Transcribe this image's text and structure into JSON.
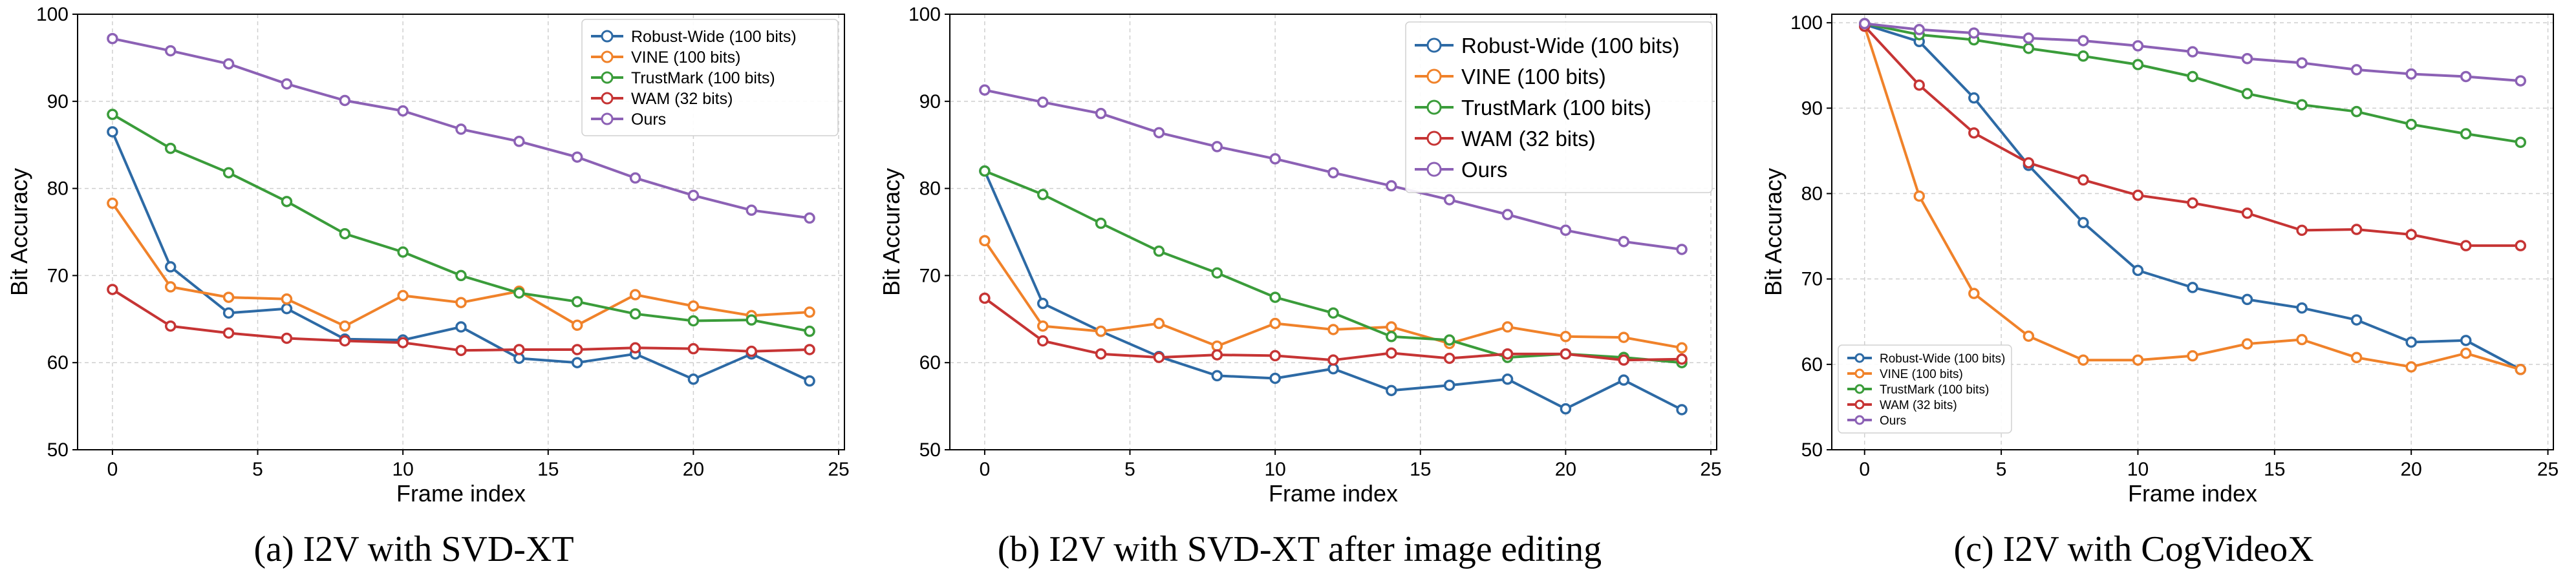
{
  "chart_data": [
    {
      "type": "line",
      "caption": "(a) I2V with SVD-XT",
      "xlabel": "Frame index",
      "ylabel": "Bit Accuracy",
      "xlim": [
        -1.2,
        25.2
      ],
      "ylim": [
        50,
        100
      ],
      "xticks": [
        0,
        5,
        10,
        15,
        20,
        25
      ],
      "yticks": [
        50,
        60,
        70,
        80,
        90,
        100
      ],
      "grid": true,
      "legend": "top-right",
      "x": [
        0,
        2,
        4,
        6,
        8,
        10,
        12,
        14,
        16,
        18,
        20,
        22,
        24
      ],
      "series": [
        {
          "name": "Robust-Wide (100 bits)",
          "color": "#2d6aa5",
          "values": [
            86.5,
            71.0,
            65.7,
            66.2,
            62.7,
            62.6,
            64.1,
            60.5,
            60.0,
            61.0,
            58.1,
            61.0,
            57.9
          ]
        },
        {
          "name": "VINE (100 bits)",
          "color": "#f0822a",
          "values": [
            78.3,
            68.7,
            67.5,
            67.3,
            64.2,
            67.7,
            66.9,
            68.2,
            64.3,
            67.8,
            66.5,
            65.4,
            65.8
          ]
        },
        {
          "name": "TrustMark (100 bits)",
          "color": "#3a9c3a",
          "values": [
            88.5,
            84.6,
            81.8,
            78.5,
            74.8,
            72.7,
            70.0,
            68.0,
            67.0,
            65.6,
            64.8,
            64.9,
            63.6
          ]
        },
        {
          "name": "WAM (32 bits)",
          "color": "#c63434",
          "values": [
            68.4,
            64.2,
            63.4,
            62.8,
            62.5,
            62.3,
            61.4,
            61.5,
            61.5,
            61.7,
            61.6,
            61.3,
            61.5
          ]
        },
        {
          "name": "Ours",
          "color": "#8c61b5",
          "values": [
            97.2,
            95.8,
            94.3,
            92.0,
            90.1,
            88.9,
            86.8,
            85.4,
            83.6,
            81.2,
            79.2,
            77.5,
            76.6
          ]
        }
      ]
    },
    {
      "type": "line",
      "caption": "(b) I2V with SVD-XT after image editing",
      "xlabel": "Frame index",
      "ylabel": "Bit Accuracy",
      "xlim": [
        -1.2,
        25.2
      ],
      "ylim": [
        50,
        100
      ],
      "xticks": [
        0,
        5,
        10,
        15,
        20,
        25
      ],
      "yticks": [
        50,
        60,
        70,
        80,
        90,
        100
      ],
      "grid": true,
      "legend": "top-right",
      "x": [
        0,
        2,
        4,
        6,
        8,
        10,
        12,
        14,
        16,
        18,
        20,
        22,
        24
      ],
      "series": [
        {
          "name": "Robust-Wide (100 bits)",
          "color": "#2d6aa5",
          "values": [
            82.0,
            66.8,
            63.6,
            60.7,
            58.5,
            58.2,
            59.3,
            56.8,
            57.4,
            58.1,
            54.7,
            58.0,
            54.6
          ]
        },
        {
          "name": "VINE (100 bits)",
          "color": "#f0822a",
          "values": [
            74.0,
            64.2,
            63.6,
            64.5,
            61.9,
            64.5,
            63.8,
            64.1,
            62.2,
            64.1,
            63.0,
            62.9,
            61.7
          ]
        },
        {
          "name": "TrustMark (100 bits)",
          "color": "#3a9c3a",
          "values": [
            82.0,
            79.3,
            76.0,
            72.8,
            70.3,
            67.5,
            65.7,
            63.0,
            62.6,
            60.6,
            61.0,
            60.6,
            60.0
          ]
        },
        {
          "name": "WAM (32 bits)",
          "color": "#c63434",
          "values": [
            67.4,
            62.5,
            61.0,
            60.6,
            60.9,
            60.8,
            60.3,
            61.1,
            60.5,
            61.0,
            61.0,
            60.3,
            60.4
          ]
        },
        {
          "name": "Ours",
          "color": "#8c61b5",
          "values": [
            91.3,
            89.9,
            88.6,
            86.4,
            84.8,
            83.4,
            81.8,
            80.3,
            78.7,
            77.0,
            75.2,
            73.9,
            73.0
          ]
        }
      ]
    },
    {
      "type": "line",
      "caption": "(c) I2V with CogVideoX",
      "xlabel": "Frame index",
      "ylabel": "Bit Accuracy",
      "xlim": [
        -1.2,
        25.2
      ],
      "ylim": [
        50,
        101
      ],
      "xticks": [
        0,
        5,
        10,
        15,
        20,
        25
      ],
      "yticks": [
        50,
        60,
        70,
        80,
        90,
        100
      ],
      "grid": true,
      "legend": "bottom-left",
      "x": [
        0,
        2,
        4,
        6,
        8,
        10,
        12,
        14,
        16,
        18,
        20,
        22,
        24
      ],
      "series": [
        {
          "name": "Robust-Wide (100 bits)",
          "color": "#2d6aa5",
          "values": [
            99.8,
            97.8,
            91.2,
            83.3,
            76.6,
            71.0,
            69.0,
            67.6,
            66.6,
            65.2,
            62.6,
            62.8,
            59.4
          ]
        },
        {
          "name": "VINE (100 bits)",
          "color": "#f0822a",
          "values": [
            99.6,
            79.7,
            68.3,
            63.3,
            60.5,
            60.5,
            61.0,
            62.4,
            62.9,
            60.8,
            59.7,
            61.3,
            59.4
          ]
        },
        {
          "name": "TrustMark (100 bits)",
          "color": "#3a9c3a",
          "values": [
            99.9,
            98.6,
            98.0,
            97.0,
            96.1,
            95.1,
            93.7,
            91.7,
            90.4,
            89.6,
            88.1,
            87.0,
            86.0
          ]
        },
        {
          "name": "WAM (32 bits)",
          "color": "#c63434",
          "values": [
            99.6,
            92.7,
            87.1,
            83.6,
            81.6,
            79.8,
            78.9,
            77.7,
            75.7,
            75.8,
            75.2,
            73.9,
            73.9
          ]
        },
        {
          "name": "Ours",
          "color": "#8c61b5",
          "values": [
            99.9,
            99.2,
            98.8,
            98.2,
            97.9,
            97.3,
            96.6,
            95.8,
            95.3,
            94.5,
            94.0,
            93.7,
            93.2
          ]
        }
      ]
    }
  ]
}
